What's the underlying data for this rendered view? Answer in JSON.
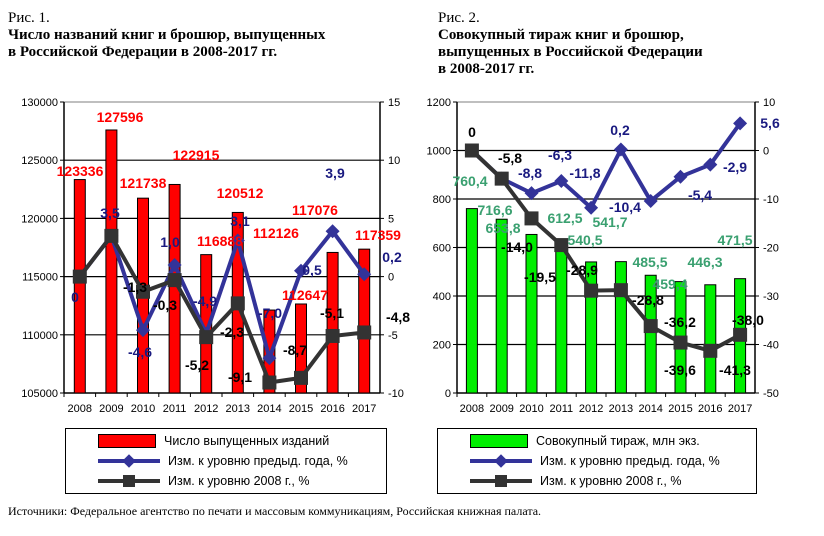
{
  "figure1": {
    "label": "Рис. 1.",
    "title_line1": "Число названий книг и брошюр, выпущенных",
    "title_line2": "в Российской Федерации в 2008-2017 гг."
  },
  "figure2": {
    "label": "Рис. 2.",
    "title_line1": "Совокупный тираж книг и брошюр,",
    "title_line2": "выпущенных в Российской Федерации",
    "title_line3": "в 2008-2017 гг."
  },
  "source": "Источники: Федеральное агентство по печати и массовым коммуникациям, Российская книжная палата.",
  "chart_data": [
    {
      "type": "bar+line",
      "categories": [
        "2008",
        "2009",
        "2010",
        "2011",
        "2012",
        "2013",
        "2014",
        "2015",
        "2016",
        "2017"
      ],
      "ylim": [
        105000,
        130000
      ],
      "yticks": [
        "105000",
        "110000",
        "115000",
        "120000",
        "125000",
        "130000"
      ],
      "y2lim": [
        -10,
        15
      ],
      "y2ticks": [
        "-10",
        "-5",
        "0",
        "5",
        "10",
        "15"
      ],
      "grid": true,
      "legend": "bottom",
      "series": [
        {
          "name": "Число выпущенных изданий",
          "kind": "bar",
          "axis": "left",
          "color": "#ff0000",
          "label_color": "#ff0000",
          "values": [
            123336,
            127596,
            121738,
            122915,
            116888,
            120512,
            112126,
            112647,
            117076,
            117359
          ],
          "labels": [
            "123336",
            "127596",
            "121738",
            "122915",
            "116888",
            "120512",
            "112126",
            "112647",
            "117076",
            "117359"
          ]
        },
        {
          "name": "Изм. к уровню предыд. года, %",
          "kind": "line",
          "axis": "right",
          "color": "#333399",
          "label_color": "#1a1a80",
          "values": [
            0,
            3.5,
            -4.6,
            1.0,
            -4.9,
            3.1,
            -7.0,
            0.5,
            3.9,
            0.2
          ],
          "labels": [
            "0",
            "3,5",
            "-4,6",
            "1,0",
            "-4,9",
            "3,1",
            "-7,0",
            "0,5",
            "3,9",
            "0,2"
          ]
        },
        {
          "name": "Изм. к уровню 2008 г., %",
          "kind": "line",
          "axis": "right",
          "color": "#333333",
          "label_color": "#000000",
          "values": [
            0,
            3.5,
            -1.3,
            -0.3,
            -5.2,
            -2.3,
            -9.1,
            -8.7,
            -5.1,
            -4.8
          ],
          "labels": [
            "",
            "",
            "-1,3",
            "-0,3",
            "-5,2",
            "-2,3",
            "-9,1",
            "-8,7",
            "-5,1",
            "-4,8"
          ]
        }
      ]
    },
    {
      "type": "bar+line",
      "categories": [
        "2008",
        "2009",
        "2010",
        "2011",
        "2012",
        "2013",
        "2014",
        "2015",
        "2016",
        "2017"
      ],
      "ylim": [
        0,
        1200
      ],
      "yticks": [
        "0",
        "200",
        "400",
        "600",
        "800",
        "1000",
        "1200"
      ],
      "y2lim": [
        -50,
        10
      ],
      "y2ticks": [
        "-50",
        "-40",
        "-30",
        "-20",
        "-10",
        "0",
        "10"
      ],
      "grid": true,
      "legend": "bottom",
      "series": [
        {
          "name": "Совокупный тираж, млн экз.",
          "kind": "bar",
          "axis": "left",
          "color": "#00ee00",
          "label_color": "#3aa070",
          "values": [
            760.4,
            716.6,
            653.8,
            612.5,
            540.5,
            541.7,
            485.5,
            459.4,
            446.3,
            471.5
          ],
          "labels": [
            "760,4",
            "716,6",
            "653,8",
            "612,5",
            "540,5",
            "541,7",
            "485,5",
            "459,4",
            "446,3",
            "471,5"
          ]
        },
        {
          "name": "Изм. к уровню предыд. года, %",
          "kind": "line",
          "axis": "right",
          "color": "#333399",
          "label_color": "#1a1a80",
          "values": [
            0,
            -5.8,
            -8.8,
            -6.3,
            -11.8,
            0.2,
            -10.4,
            -5.4,
            -2.9,
            5.6
          ],
          "labels": [
            "",
            "",
            "-8,8",
            "-6,3",
            "-11,8",
            "0,2",
            "-10,4",
            "-5,4",
            "-2,9",
            "5,6"
          ]
        },
        {
          "name": "Изм. к уровню 2008 г., %",
          "kind": "line",
          "axis": "right",
          "color": "#333333",
          "label_color": "#000000",
          "values": [
            0,
            -5.8,
            -14.0,
            -19.5,
            -28.9,
            -28.8,
            -36.2,
            -39.6,
            -41.3,
            -38.0
          ],
          "labels": [
            "0",
            "-5,8",
            "-14,0",
            "-19,5",
            "-28,9",
            "-28,8",
            "-36,2",
            "-39,6",
            "-41,3",
            "-38,0"
          ]
        }
      ]
    }
  ]
}
